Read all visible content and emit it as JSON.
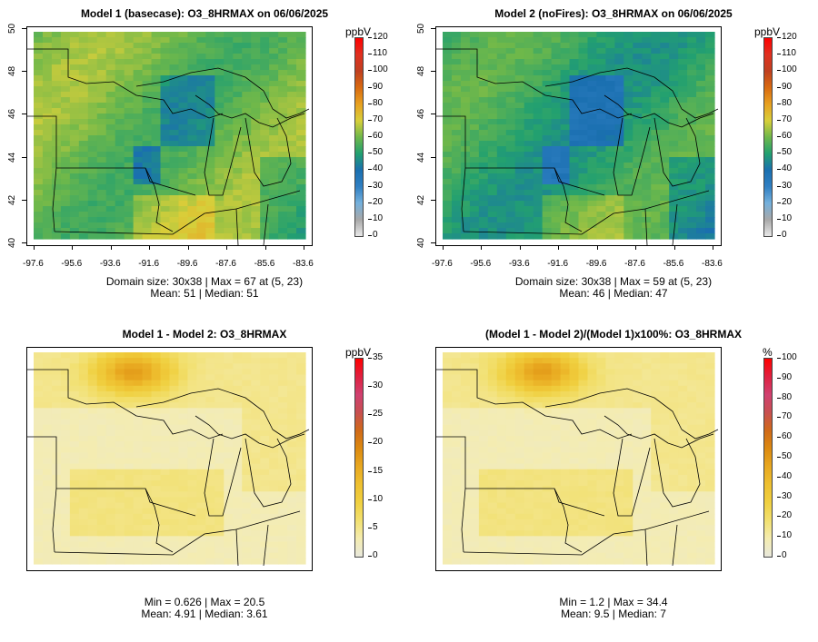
{
  "panels": [
    {
      "title": "Model 1 (basecase): O3_8HRMAX on 06/06/2025",
      "unit": "ppbV",
      "stats_line1": "Domain size: 30x38 | Max = 67 at (5, 23)",
      "stats_line2": "Mean: 51 |  Median: 51",
      "colorbar_ticks": [
        "120",
        "110",
        "100",
        "90",
        "80",
        "70",
        "60",
        "50",
        "40",
        "30",
        "20",
        "10",
        "0"
      ],
      "show_axes": true,
      "palette": "concentration"
    },
    {
      "title": "Model 2 (noFires): O3_8HRMAX on 06/06/2025",
      "unit": "ppbV",
      "stats_line1": "Domain size: 30x38 | Max = 59 at (5, 23)",
      "stats_line2": "Mean: 46 |  Median: 47",
      "colorbar_ticks": [
        "120",
        "110",
        "100",
        "90",
        "80",
        "70",
        "60",
        "50",
        "40",
        "30",
        "20",
        "10",
        "0"
      ],
      "show_axes": true,
      "palette": "concentration"
    },
    {
      "title": "Model 1 - Model 2: O3_8HRMAX",
      "unit": "ppbV",
      "stats_line1": "Min = 0.626 | Max = 20.5",
      "stats_line2": "Mean: 4.91 |  Median: 3.61",
      "colorbar_ticks": [
        "35",
        "30",
        "25",
        "20",
        "15",
        "10",
        "5",
        "0"
      ],
      "show_axes": false,
      "palette": "difference"
    },
    {
      "title": "(Model 1 - Model 2)/(Model 1)x100%: O3_8HRMAX",
      "unit": "%",
      "stats_line1": "Min = 1.2 | Max = 34.4",
      "stats_line2": "Mean: 9.5 |  Median: 7",
      "colorbar_ticks": [
        "100",
        "90",
        "80",
        "70",
        "60",
        "50",
        "40",
        "30",
        "20",
        "10",
        "0"
      ],
      "show_axes": false,
      "palette": "difference"
    }
  ],
  "axes": {
    "lat_ticks": [
      "50",
      "48",
      "46",
      "44",
      "42",
      "40"
    ],
    "lon_ticks": [
      "-97.6",
      "-95.6",
      "-93.6",
      "-91.6",
      "-89.6",
      "-87.6",
      "-85.6",
      "-83.6"
    ]
  },
  "colors": {
    "concentration": [
      "#e8e8e8",
      "#a8a8a8",
      "#74b0dc",
      "#2f7fc2",
      "#1a6fb0",
      "#22a070",
      "#6fb84a",
      "#d8cf3a",
      "#e8a020",
      "#d86a10",
      "#c04020",
      "#e03020",
      "#ff0000"
    ],
    "difference": [
      "#e8e8dc",
      "#f4ecb0",
      "#f2e070",
      "#f0d040",
      "#eec030",
      "#e8a820",
      "#dc8a10",
      "#d06a18",
      "#c85050",
      "#d04070",
      "#e02040",
      "#ff0000"
    ]
  }
}
